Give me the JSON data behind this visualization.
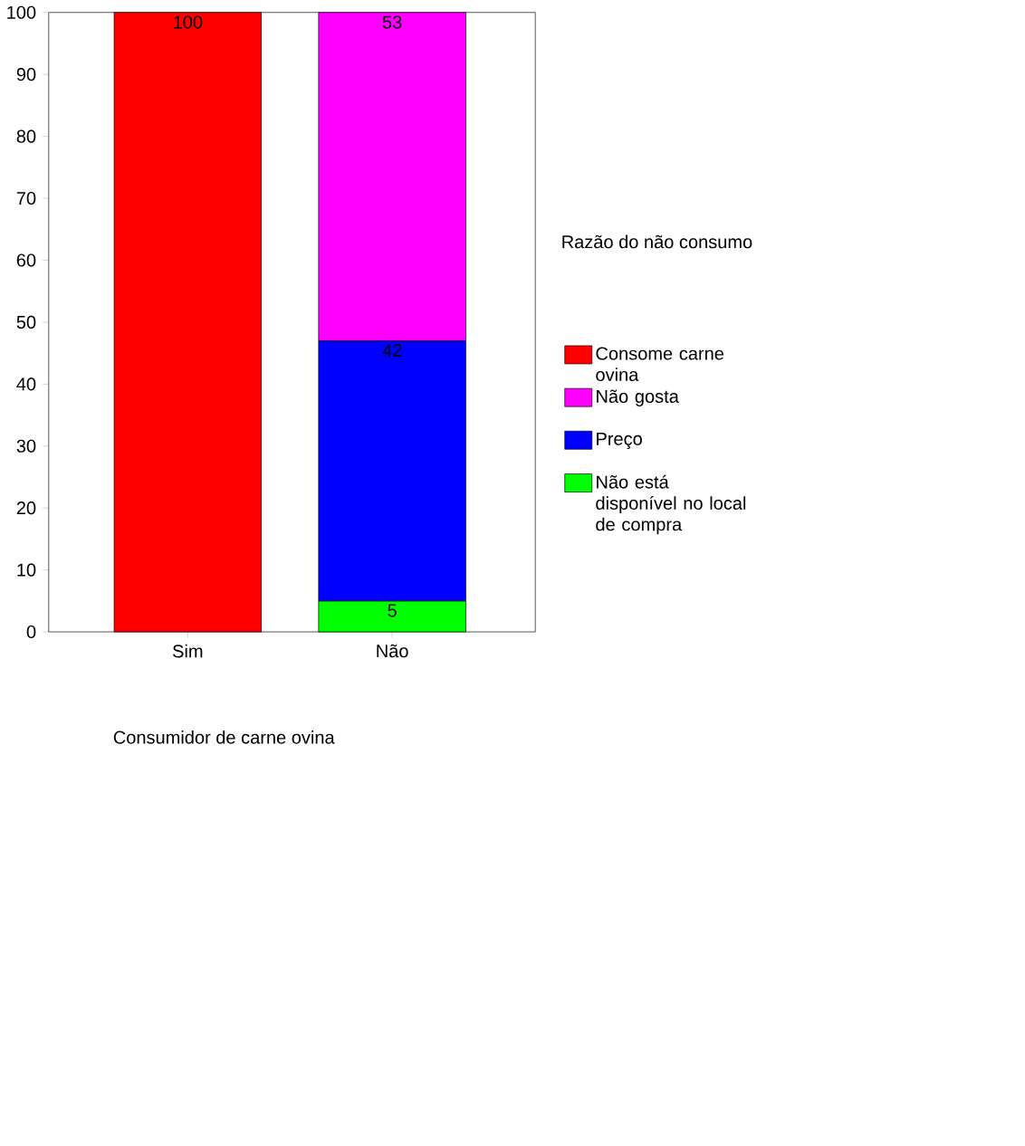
{
  "chart_data": {
    "type": "bar",
    "stacked": true,
    "xlabel": "Consumidor de carne ovina",
    "legend_title": "Razão do não consumo",
    "categories": [
      "Sim",
      "Não"
    ],
    "series": [
      {
        "name": "Não está disponível no local de compra",
        "color": "#00ff00",
        "values": [
          null,
          5
        ]
      },
      {
        "name": "Preço",
        "color": "#0000ff",
        "values": [
          null,
          42
        ]
      },
      {
        "name": "Não gosta",
        "color": "#ff00ff",
        "values": [
          null,
          53
        ]
      },
      {
        "name": "Consome carne ovina",
        "color": "#ff0000",
        "values": [
          100,
          null
        ]
      }
    ],
    "ylim": [
      0,
      100
    ],
    "yticks": [
      0,
      10,
      20,
      30,
      40,
      50,
      60,
      70,
      80,
      90,
      100
    ],
    "data_labels": true,
    "legend": "right",
    "grid": false
  }
}
